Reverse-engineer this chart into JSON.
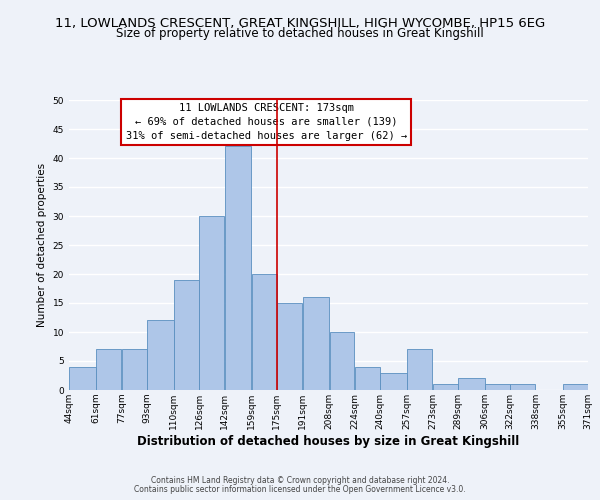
{
  "title": "11, LOWLANDS CRESCENT, GREAT KINGSHILL, HIGH WYCOMBE, HP15 6EG",
  "subtitle": "Size of property relative to detached houses in Great Kingshill",
  "xlabel": "Distribution of detached houses by size in Great Kingshill",
  "ylabel": "Number of detached properties",
  "bin_edges": [
    44,
    61,
    77,
    93,
    110,
    126,
    142,
    159,
    175,
    191,
    208,
    224,
    240,
    257,
    273,
    289,
    306,
    322,
    338,
    355,
    371
  ],
  "counts": [
    4,
    7,
    7,
    12,
    19,
    30,
    42,
    20,
    15,
    16,
    10,
    4,
    3,
    7,
    1,
    2,
    1,
    1,
    0,
    1
  ],
  "bar_color": "#aec6e8",
  "bar_edge_color": "#5a8fc0",
  "vline_x": 175,
  "vline_color": "#cc0000",
  "ylim": [
    0,
    50
  ],
  "yticks": [
    0,
    5,
    10,
    15,
    20,
    25,
    30,
    35,
    40,
    45,
    50
  ],
  "annotation_title": "11 LOWLANDS CRESCENT: 173sqm",
  "annotation_line1": "← 69% of detached houses are smaller (139)",
  "annotation_line2": "31% of semi-detached houses are larger (62) →",
  "footer_line1": "Contains HM Land Registry data © Crown copyright and database right 2024.",
  "footer_line2": "Contains public sector information licensed under the Open Government Licence v3.0.",
  "background_color": "#eef2f9",
  "grid_color": "#ffffff",
  "title_fontsize": 9.5,
  "subtitle_fontsize": 8.5,
  "tick_label_fontsize": 6.5,
  "xlabel_fontsize": 8.5,
  "ylabel_fontsize": 7.5,
  "annotation_fontsize": 7.5,
  "footer_fontsize": 5.5
}
